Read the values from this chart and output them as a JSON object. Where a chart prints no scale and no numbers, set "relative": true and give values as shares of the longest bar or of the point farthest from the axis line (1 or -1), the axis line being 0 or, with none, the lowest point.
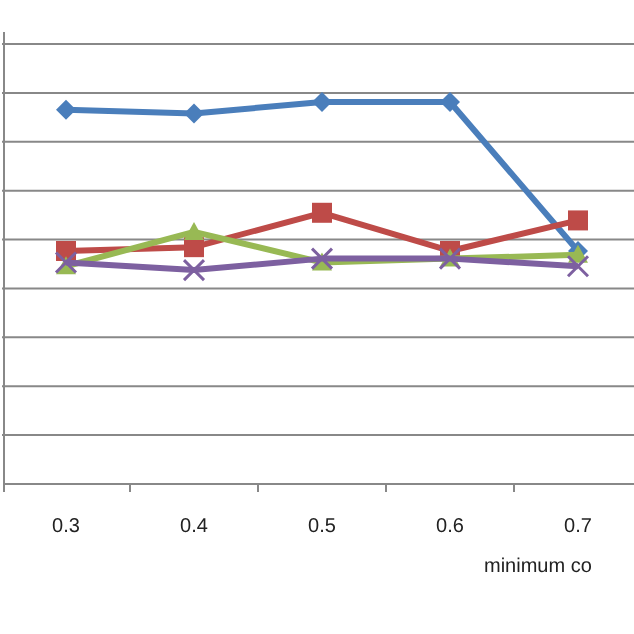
{
  "chart_data": {
    "type": "line",
    "relative": true,
    "xlabel": "minimum co",
    "categories": [
      "0.3",
      "0.4",
      "0.5",
      "0.6",
      "0.7"
    ],
    "grid": "y",
    "series": [
      {
        "color": "#4a7ebb",
        "marker": "diamond",
        "values": [
          0.98,
          0.97,
          1,
          1,
          0.61
        ]
      },
      {
        "color": "#be4b48",
        "marker": "square",
        "values": [
          0.61,
          0.62,
          0.71,
          0.61,
          0.69
        ]
      },
      {
        "color": "#98b954",
        "marker": "triangle",
        "values": [
          0.57,
          0.66,
          0.58,
          0.59,
          0.6
        ]
      },
      {
        "color": "#7d60a0",
        "marker": "cross",
        "values": [
          0.58,
          0.56,
          0.59,
          0.59,
          0.57
        ]
      }
    ]
  }
}
